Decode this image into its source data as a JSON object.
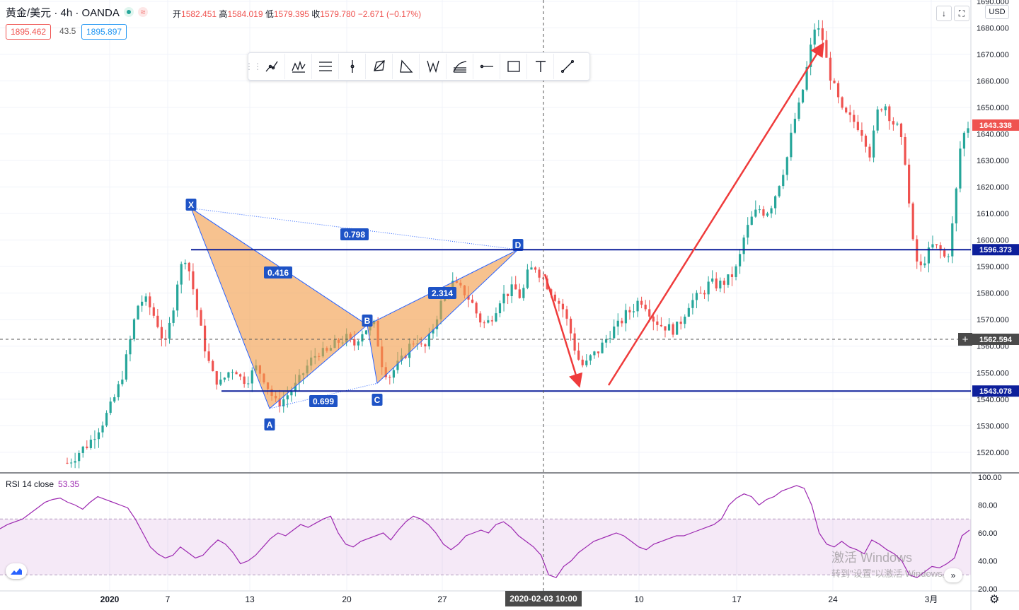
{
  "header": {
    "symbol": "黄金/美元 · 4h · OANDA",
    "status_icon": "live-dot-icon",
    "ohlc": {
      "open_label": "开",
      "open": "1582.451",
      "high_label": "高",
      "high": "1584.019",
      "low_label": "低",
      "low": "1579.395",
      "close_label": "收",
      "close": "1579.780",
      "change": "−2.671 (−0.17%)"
    },
    "bid": "1895.462",
    "spread": "43.5",
    "ask": "1895.897"
  },
  "top_right": {
    "currency": "USD",
    "arrow_icon": "arrow-down-icon",
    "fullscreen_icon": "fullscreen-icon"
  },
  "toolbar": {
    "items": [
      "trend-line-icon",
      "pattern-icon",
      "parallel-channel-icon",
      "vertical-line-icon",
      "polyline-icon",
      "triangle-icon",
      "xabcd-icon",
      "fib-icon",
      "horizontal-ray-icon",
      "rectangle-icon",
      "text-icon",
      "line-icon"
    ]
  },
  "chart_data": {
    "type": "candlestick",
    "price_axis": {
      "ylim": [
        1512.5,
        1690.5
      ],
      "ticks": [
        "1520.000",
        "1530.000",
        "1540.000",
        "1550.000",
        "1560.000",
        "1570.000",
        "1580.000",
        "1590.000",
        "1600.000",
        "1610.000",
        "1620.000",
        "1630.000",
        "1640.000",
        "1650.000",
        "1660.000",
        "1670.000",
        "1680.000",
        "1690.000"
      ]
    },
    "time_axis": {
      "labels": [
        "2020",
        "7",
        "13",
        "20",
        "27",
        "10",
        "17",
        "24",
        "3月"
      ],
      "crosshair_label": "2020-02-03   10:00"
    },
    "price_labels": [
      {
        "value": "1643.338",
        "color": "#ef5350"
      },
      {
        "value": "1596.373",
        "color": "#0d1f9b"
      },
      {
        "value": "1562.594",
        "color": "#4a4a4a"
      },
      {
        "value": "1543.078",
        "color": "#0d1f9b"
      }
    ],
    "horizontal_lines": [
      1596.373,
      1543.078
    ],
    "crosshair_price": 1562.594,
    "pattern": {
      "points": {
        "X": 1612,
        "A": 1536.5,
        "B": 1568,
        "C": 1546,
        "D": 1596.4
      },
      "labels": [
        "X",
        "A",
        "B",
        "C",
        "D"
      ],
      "ratios": {
        "XB": "0.416",
        "XD": "0.798",
        "AC": "0.699",
        "BD": "2.314"
      }
    },
    "close_path": [
      1516,
      1518,
      1521,
      1523,
      1527,
      1531,
      1536,
      1542,
      1550,
      1562,
      1575,
      1578,
      1574,
      1568,
      1560,
      1572,
      1588,
      1594,
      1582,
      1568,
      1556,
      1548,
      1546,
      1550,
      1552,
      1547,
      1548,
      1552,
      1549,
      1543,
      1538,
      1540,
      1543,
      1546,
      1551,
      1555,
      1558,
      1557,
      1560,
      1562,
      1563,
      1560,
      1565,
      1567,
      1568,
      1554,
      1548,
      1552,
      1555,
      1560,
      1563,
      1558,
      1564,
      1572,
      1580,
      1584,
      1582,
      1580,
      1576,
      1570,
      1568,
      1572,
      1578,
      1580,
      1582,
      1578,
      1588,
      1590,
      1586,
      1582,
      1578,
      1574,
      1566,
      1556,
      1552,
      1556,
      1558,
      1562,
      1566,
      1568,
      1572,
      1574,
      1578,
      1575,
      1570,
      1568,
      1567,
      1566,
      1570,
      1576,
      1578,
      1580,
      1584,
      1583,
      1584,
      1586,
      1590,
      1602,
      1608,
      1612,
      1610,
      1614,
      1622,
      1630,
      1644,
      1652,
      1666,
      1680,
      1678,
      1664,
      1656,
      1648,
      1646,
      1644,
      1640,
      1632,
      1648,
      1652,
      1645,
      1642,
      1630,
      1600,
      1588,
      1594,
      1598,
      1596,
      1592,
      1610,
      1638,
      1643
    ],
    "rsi": {
      "label": "RSI 14 close",
      "value": "53.35",
      "ylim": [
        20,
        100
      ],
      "ticks": [
        "100.00",
        "80.00",
        "60.00",
        "40.00",
        "20.00"
      ],
      "band": [
        30,
        70
      ],
      "values": [
        63,
        66,
        68,
        70,
        74,
        78,
        82,
        84,
        85,
        82,
        80,
        77,
        82,
        86,
        84,
        82,
        80,
        78,
        70,
        60,
        50,
        45,
        42,
        44,
        50,
        46,
        42,
        44,
        50,
        55,
        52,
        46,
        38,
        40,
        44,
        50,
        56,
        60,
        58,
        62,
        66,
        64,
        67,
        70,
        72,
        60,
        52,
        50,
        54,
        56,
        58,
        60,
        55,
        62,
        68,
        72,
        70,
        66,
        60,
        52,
        48,
        52,
        58,
        60,
        62,
        60,
        66,
        68,
        64,
        58,
        54,
        50,
        44,
        30,
        28,
        36,
        40,
        46,
        50,
        54,
        56,
        58,
        60,
        58,
        54,
        50,
        48,
        52,
        54,
        56,
        58,
        58,
        60,
        62,
        64,
        66,
        70,
        80,
        85,
        88,
        86,
        80,
        84,
        86,
        90,
        92,
        94,
        92,
        80,
        60,
        52,
        50,
        54,
        50,
        48,
        45,
        55,
        52,
        48,
        45,
        40,
        30,
        28,
        32,
        36,
        35,
        38,
        42,
        58,
        62
      ]
    }
  },
  "watermark": {
    "line1": "激活 Windows",
    "line2": "转到\"设置\"以激活 Windows。"
  },
  "rsi_logo_icon": "tradingview-logo-icon",
  "scroll_icon": "double-chevron-right-icon",
  "settings_icon": "gear-icon"
}
